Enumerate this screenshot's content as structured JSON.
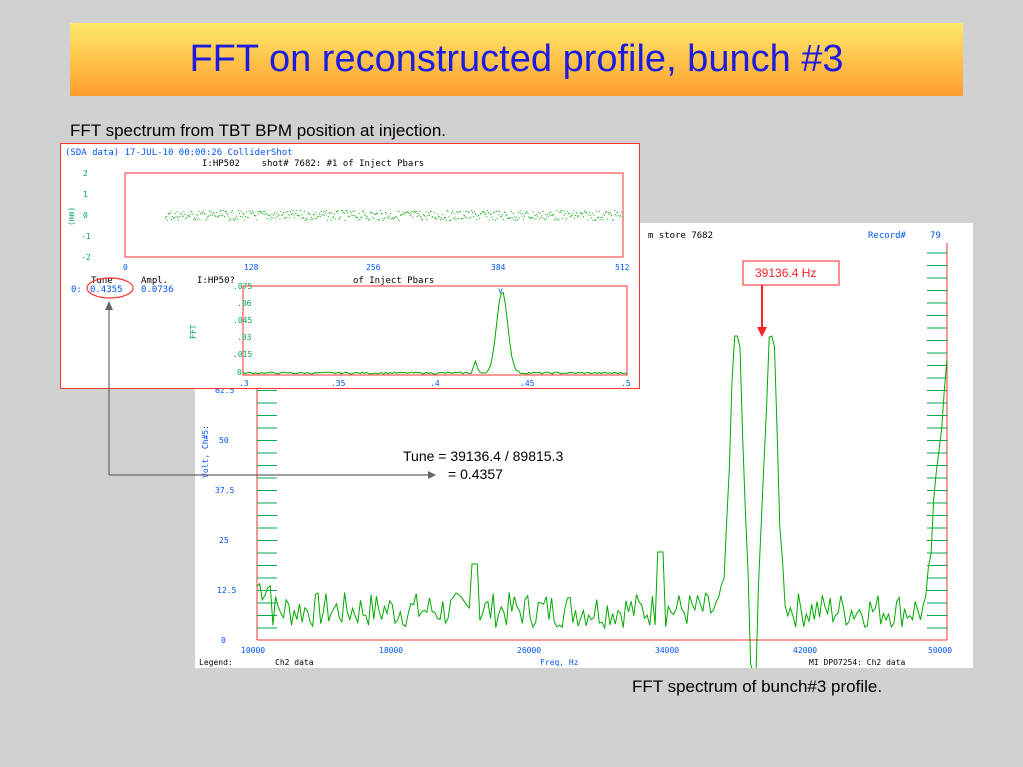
{
  "slide": {
    "title": "FFT on reconstructed profile, bunch #3",
    "caption_top": "FFT spectrum from TBT BPM position at injection.",
    "caption_bottom": "FFT spectrum of bunch#3 profile."
  },
  "big_plot": {
    "header_left": "m store 7682",
    "record_label": "Record#",
    "record_value": "79",
    "y_axis_label": "Volt, Ch#5:",
    "y_ticks": [
      "0",
      "12.5",
      "25",
      "37.5",
      "50",
      "62.5"
    ],
    "x_ticks": [
      "10000",
      "18000",
      "26000",
      "34000",
      "42000",
      "50000"
    ],
    "x_axis_label": "Freq, Hz",
    "legend_label": "Legend:",
    "legend_value": "Ch2 data",
    "footer_right": "MI DPO7254: Ch2 data",
    "peak_annotation": "39136.4 Hz",
    "colors": {
      "trace": "#00aa00",
      "axes": "#ff3333",
      "labels": "#0055ff",
      "ticks": "#00aa55"
    }
  },
  "tune_note": {
    "line1": "Tune = 39136.4 / 89815.3",
    "line2": "= 0.4357"
  },
  "sda": {
    "header": "(SDA data) 17-JUL-10 00:00:26 ColliderShot",
    "subheader": "I:HP502    shot# 7682: #1 of Inject Pbars",
    "top_plot": {
      "y_axis_label": "(mm)",
      "y_ticks": [
        "2",
        "1",
        "0",
        "-1",
        "-2"
      ],
      "x_ticks": [
        "0",
        "128",
        "256",
        "384",
        "512"
      ]
    },
    "tune_header": "Tune",
    "ampl_header": "Ampl.",
    "row_label": "0:",
    "tune_value": "0.4355",
    "ampl_value": "0.0736",
    "fft_title_left": "I:HP50?",
    "fft_title_right": "of Inject Pbars",
    "fft_plot": {
      "y_axis_label": "FFT",
      "y_ticks": [
        ".075",
        ".06",
        ".045",
        ".03",
        ".015",
        "0"
      ],
      "x_ticks": [
        ".3",
        ".35",
        ".4",
        ".45",
        ".5"
      ]
    }
  }
}
